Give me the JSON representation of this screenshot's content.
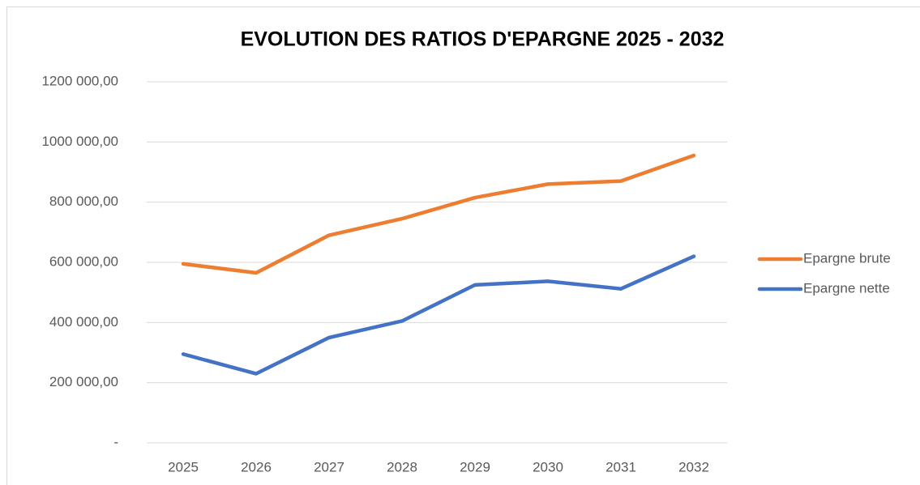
{
  "chart_data": {
    "type": "line",
    "title": "EVOLUTION DES RATIOS D'EPARGNE 2025 - 2032",
    "categories": [
      "2025",
      "2026",
      "2027",
      "2028",
      "2029",
      "2030",
      "2031",
      "2032"
    ],
    "series": [
      {
        "name": "Epargne brute",
        "color": "#ed7d31",
        "values": [
          595000,
          565000,
          690000,
          745000,
          815000,
          860000,
          870000,
          955000
        ]
      },
      {
        "name": "Epargne nette",
        "color": "#4472c4",
        "values": [
          295000,
          230000,
          350000,
          405000,
          525000,
          537000,
          512000,
          620000
        ]
      }
    ],
    "ylim": [
      0,
      1200000
    ],
    "yticks": [
      {
        "value": 0,
        "label": "-"
      },
      {
        "value": 200000,
        "label": "200 000,00"
      },
      {
        "value": 400000,
        "label": "400 000,00"
      },
      {
        "value": 600000,
        "label": "600 000,00"
      },
      {
        "value": 800000,
        "label": "800 000,00"
      },
      {
        "value": 1000000,
        "label": "1000 000,00"
      },
      {
        "value": 1200000,
        "label": "1200 000,00"
      }
    ],
    "grid": true,
    "legend": "right"
  }
}
